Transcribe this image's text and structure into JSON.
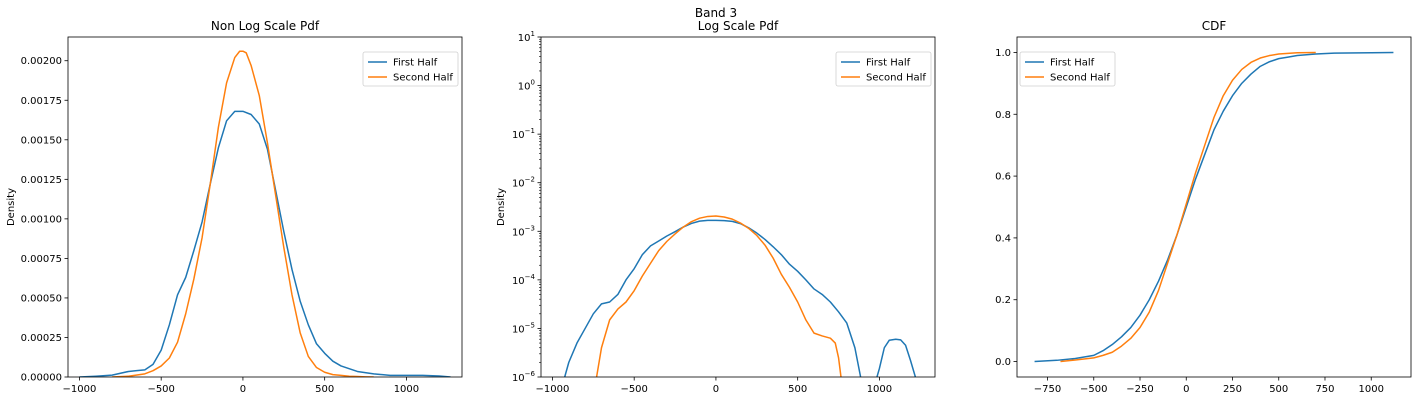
{
  "suptitle": "Band 3",
  "colors": {
    "first": "#1f77b4",
    "second": "#ff7f0e"
  },
  "chart_data": [
    {
      "type": "line",
      "title": "Non Log Scale Pdf",
      "xlabel": "",
      "ylabel": "Density",
      "yscale": "linear",
      "xlim": [
        -1070,
        1340
      ],
      "ylim": [
        0,
        0.00215
      ],
      "xticks": [
        -1000,
        -500,
        0,
        500,
        1000
      ],
      "xtick_labels": [
        "−1000",
        "−500",
        "0",
        "500",
        "1000"
      ],
      "yticks": [
        0,
        0.00025,
        0.0005,
        0.00075,
        0.001,
        0.00125,
        0.0015,
        0.00175,
        0.002
      ],
      "ytick_labels": [
        "0.00000",
        "0.00025",
        "0.00050",
        "0.00075",
        "0.00100",
        "0.00125",
        "0.00150",
        "0.00175",
        "0.00200"
      ],
      "legend": {
        "location": "upper right",
        "entries": [
          "First Half",
          "Second Half"
        ]
      },
      "series": [
        {
          "name": "First Half",
          "x": [
            -1000,
            -900,
            -800,
            -700,
            -650,
            -600,
            -550,
            -500,
            -450,
            -400,
            -350,
            -300,
            -250,
            -200,
            -150,
            -100,
            -50,
            0,
            50,
            100,
            150,
            200,
            250,
            300,
            350,
            400,
            450,
            500,
            550,
            600,
            700,
            800,
            900,
            1000,
            1100,
            1200,
            1270
          ],
          "y": [
            0.0,
            5e-06,
            1.2e-05,
            3.5e-05,
            4e-05,
            4.5e-05,
            8e-05,
            0.00017,
            0.00033,
            0.00052,
            0.00063,
            0.0008,
            0.00098,
            0.00122,
            0.00145,
            0.00162,
            0.00168,
            0.00168,
            0.00166,
            0.0016,
            0.00144,
            0.00118,
            0.00092,
            0.00068,
            0.00048,
            0.00033,
            0.00021,
            0.00015,
            0.0001,
            7e-05,
            3.5e-05,
            2e-05,
            1e-05,
            1e-05,
            1e-05,
            6e-06,
            0.0
          ]
        },
        {
          "name": "Second Half",
          "x": [
            -800,
            -700,
            -600,
            -550,
            -500,
            -450,
            -400,
            -350,
            -300,
            -250,
            -200,
            -150,
            -100,
            -50,
            -20,
            0,
            20,
            50,
            100,
            150,
            200,
            250,
            300,
            350,
            400,
            450,
            500,
            550,
            600,
            650,
            700,
            750,
            800
          ],
          "y": [
            0.0,
            5e-06,
            2e-05,
            4e-05,
            7e-05,
            0.00012,
            0.00022,
            0.0004,
            0.00062,
            0.00088,
            0.00122,
            0.00158,
            0.00186,
            0.00202,
            0.00206,
            0.00206,
            0.00205,
            0.00197,
            0.00178,
            0.00148,
            0.00115,
            0.00082,
            0.00052,
            0.00028,
            0.00013,
            6e-05,
            3e-05,
            1.5e-05,
            1e-05,
            5e-06,
            3e-06,
            1e-06,
            0.0
          ]
        }
      ]
    },
    {
      "type": "line",
      "title": "Log Scale Pdf",
      "xlabel": "",
      "ylabel": "Density",
      "yscale": "log",
      "xlim": [
        -1070,
        1340
      ],
      "ylim": [
        1e-06,
        10
      ],
      "xticks": [
        -1000,
        -500,
        0,
        500,
        1000
      ],
      "xtick_labels": [
        "−1000",
        "−500",
        "0",
        "500",
        "1000"
      ],
      "yticks": [
        1e-06,
        1e-05,
        0.0001,
        0.001,
        0.01,
        0.1,
        1,
        10
      ],
      "ytick_exponents": [
        "−6",
        "−5",
        "−4",
        "−3",
        "−2",
        "−1",
        "0",
        "1"
      ],
      "legend": {
        "location": "upper right",
        "entries": [
          "First Half",
          "Second Half"
        ]
      },
      "series": [
        {
          "name": "First Half",
          "x": [
            -925,
            -900,
            -850,
            -800,
            -750,
            -700,
            -650,
            -600,
            -550,
            -500,
            -450,
            -400,
            -350,
            -300,
            -250,
            -200,
            -150,
            -100,
            -50,
            0,
            50,
            100,
            150,
            200,
            250,
            300,
            350,
            400,
            450,
            500,
            550,
            600,
            650,
            700,
            750,
            800,
            850,
            885
          ],
          "y": [
            1e-06,
            2e-06,
            5e-06,
            1e-05,
            2e-05,
            3.2e-05,
            3.5e-05,
            5e-05,
            0.0001,
            0.00017,
            0.00033,
            0.0005,
            0.00063,
            0.0008,
            0.00098,
            0.00122,
            0.00145,
            0.00162,
            0.00168,
            0.00168,
            0.00166,
            0.0016,
            0.00144,
            0.00118,
            0.00092,
            0.00068,
            0.00048,
            0.00033,
            0.00021,
            0.00015,
            0.0001,
            6.5e-05,
            5e-05,
            3.5e-05,
            2.2e-05,
            1.3e-05,
            4e-06,
            1e-06
          ]
        },
        {
          "name": "First Half",
          "x": [
            985,
            1000,
            1030,
            1060,
            1100,
            1130,
            1160,
            1190,
            1220
          ],
          "y": [
            1e-06,
            1.5e-06,
            4e-06,
            5.7e-06,
            6e-06,
            5.8e-06,
            4.5e-06,
            2.2e-06,
            1e-06
          ]
        },
        {
          "name": "Second Half",
          "x": [
            -730,
            -700,
            -650,
            -600,
            -550,
            -500,
            -450,
            -400,
            -350,
            -300,
            -250,
            -200,
            -150,
            -100,
            -50,
            0,
            50,
            100,
            150,
            200,
            250,
            300,
            350,
            400,
            450,
            500,
            550,
            600,
            650,
            700,
            730,
            750,
            765
          ],
          "y": [
            1e-06,
            4e-06,
            1.5e-05,
            2.5e-05,
            3.5e-05,
            6e-05,
            0.00012,
            0.00022,
            0.0004,
            0.00062,
            0.00088,
            0.00122,
            0.00158,
            0.00186,
            0.00202,
            0.00206,
            0.00197,
            0.00178,
            0.00148,
            0.00115,
            0.00082,
            0.00052,
            0.00028,
            0.00013,
            7e-05,
            3.5e-05,
            1.5e-05,
            8e-06,
            7e-06,
            6.3e-06,
            5e-06,
            2.5e-06,
            1e-06
          ]
        }
      ]
    },
    {
      "type": "line",
      "title": "CDF",
      "xlabel": "",
      "ylabel": "",
      "yscale": "linear",
      "xlim": [
        -915,
        1215
      ],
      "ylim": [
        -0.05,
        1.05
      ],
      "xticks": [
        -750,
        -500,
        -250,
        0,
        250,
        500,
        750,
        1000
      ],
      "xtick_labels": [
        "−750",
        "−500",
        "−250",
        "0",
        "250",
        "500",
        "750",
        "1000"
      ],
      "yticks": [
        0,
        0.2,
        0.4,
        0.6,
        0.8,
        1.0
      ],
      "ytick_labels": [
        "0.0",
        "0.2",
        "0.4",
        "0.6",
        "0.8",
        "1.0"
      ],
      "legend": {
        "location": "upper left",
        "entries": [
          "First Half",
          "Second Half"
        ]
      },
      "series": [
        {
          "name": "First Half",
          "x": [
            -820,
            -700,
            -600,
            -500,
            -450,
            -400,
            -350,
            -300,
            -250,
            -200,
            -150,
            -100,
            -50,
            0,
            50,
            100,
            150,
            200,
            250,
            300,
            350,
            400,
            450,
            500,
            550,
            600,
            700,
            800,
            1000,
            1120
          ],
          "y": [
            0.0,
            0.004,
            0.01,
            0.02,
            0.035,
            0.055,
            0.08,
            0.11,
            0.15,
            0.2,
            0.26,
            0.33,
            0.41,
            0.5,
            0.59,
            0.67,
            0.75,
            0.81,
            0.86,
            0.9,
            0.93,
            0.955,
            0.97,
            0.98,
            0.985,
            0.99,
            0.995,
            0.998,
            0.999,
            1.0
          ]
        },
        {
          "name": "Second Half",
          "x": [
            -680,
            -600,
            -500,
            -450,
            -400,
            -350,
            -300,
            -250,
            -200,
            -150,
            -100,
            -50,
            0,
            50,
            100,
            150,
            200,
            250,
            300,
            350,
            400,
            450,
            500,
            550,
            600,
            700
          ],
          "y": [
            0.0,
            0.005,
            0.012,
            0.02,
            0.03,
            0.05,
            0.075,
            0.11,
            0.16,
            0.23,
            0.32,
            0.41,
            0.51,
            0.61,
            0.7,
            0.79,
            0.86,
            0.91,
            0.945,
            0.968,
            0.982,
            0.99,
            0.995,
            0.997,
            0.999,
            1.0
          ]
        }
      ]
    }
  ]
}
